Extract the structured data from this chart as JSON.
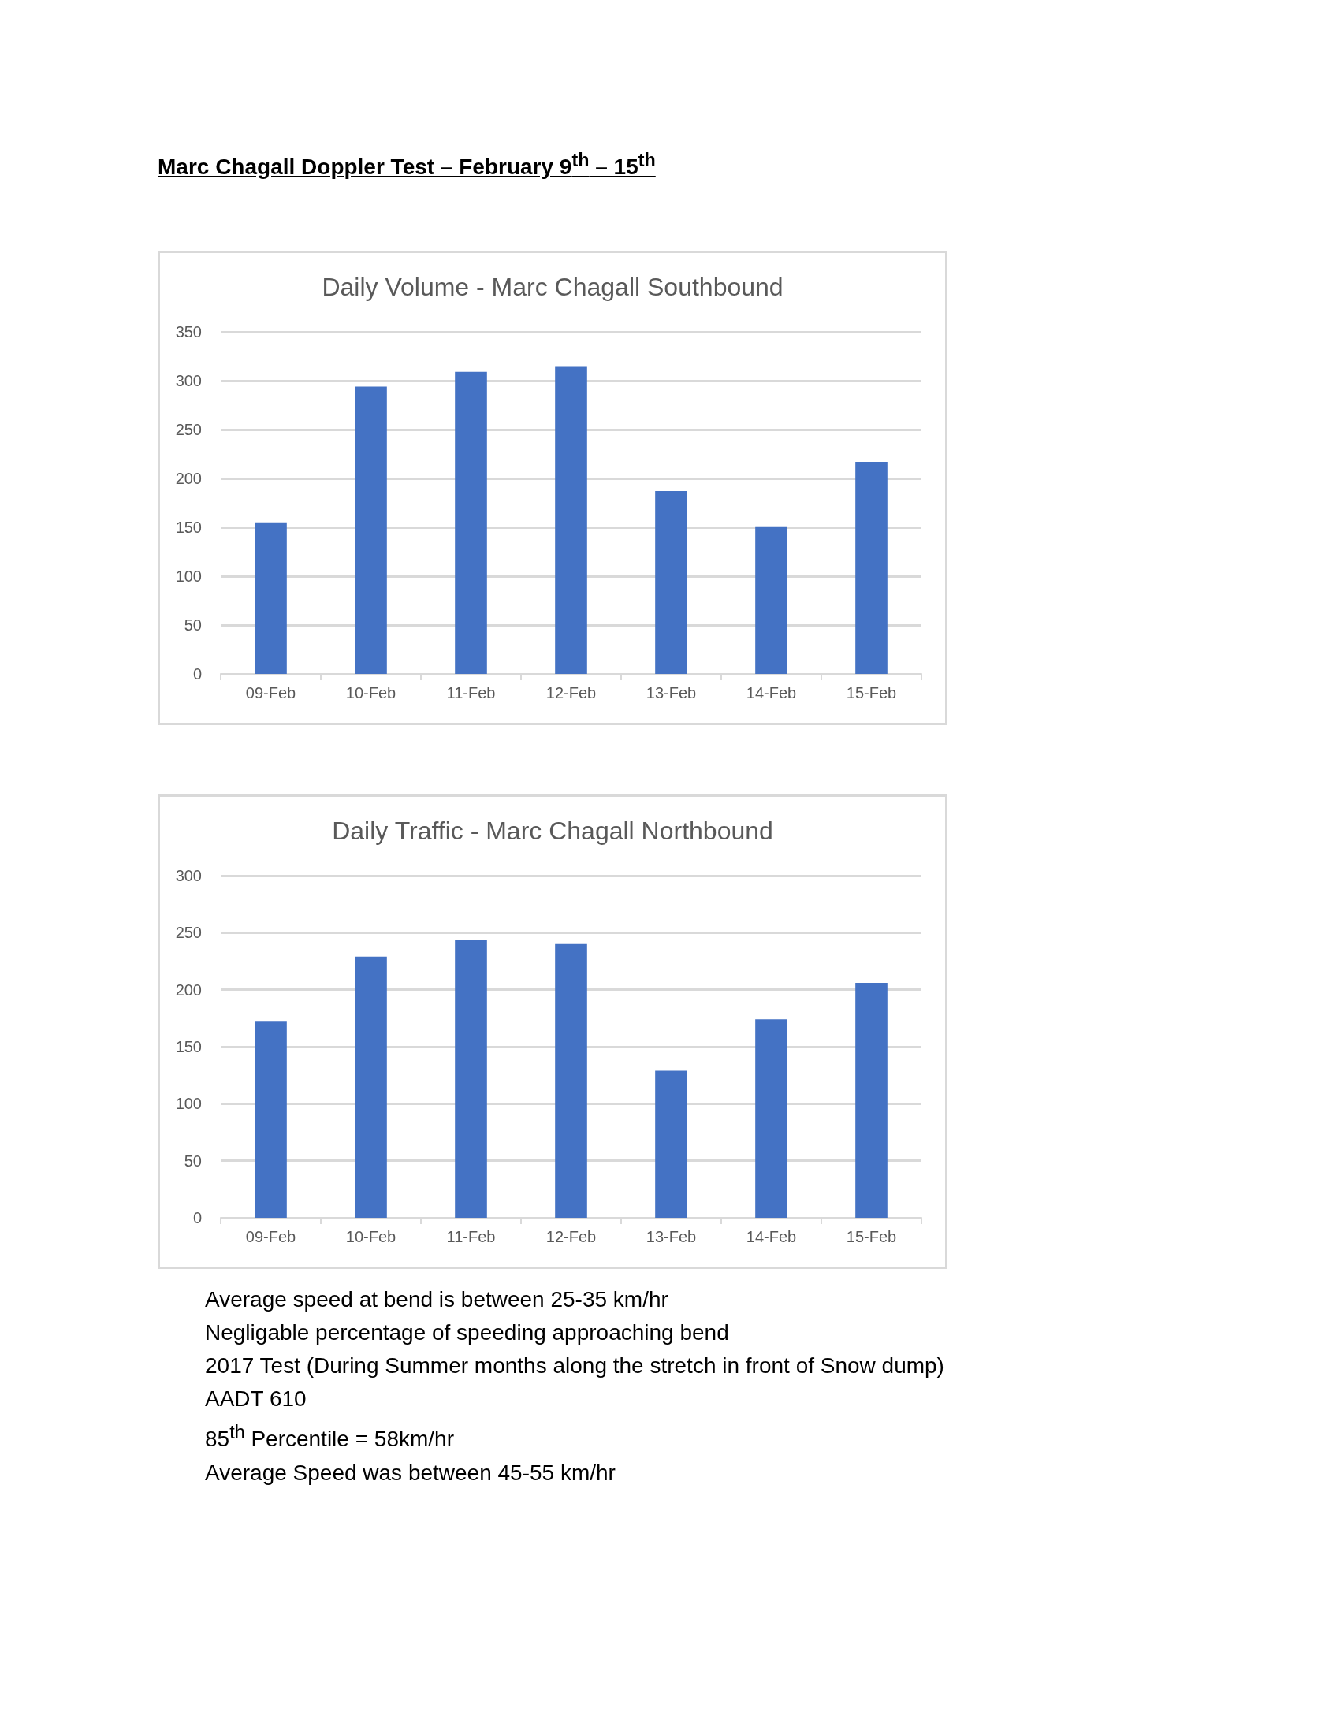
{
  "chart_data": [
    {
      "type": "other",
      "title": "Marc Chagall Doppler Test – February 9$^{th}$ – 15$^{th}$"
    },
    {
      "type": "bar",
      "title": "Daily Volume - Marc Chagall Southbound",
      "categories": [
        "09-Feb",
        "10-Feb",
        "11-Feb",
        "12-Feb",
        "13-Feb",
        "14-Feb",
        "15-Feb"
      ],
      "values": [
        155,
        294,
        309,
        315,
        187,
        151,
        217
      ],
      "color": "#4472c4",
      "ylim": [
        0,
        350
      ],
      "yticks": [
        0,
        50,
        100,
        150,
        200,
        250,
        300,
        350
      ],
      "grid": "y"
    },
    {
      "type": "bar",
      "title": "Daily Traffic - Marc Chagall Northbound",
      "categories": [
        "09-Feb",
        "10-Feb",
        "11-Feb",
        "12-Feb",
        "13-Feb",
        "14-Feb",
        "15-Feb"
      ],
      "values": [
        172,
        229,
        244,
        240,
        129,
        174,
        206
      ],
      "color": "#4472c4",
      "ylim": [
        0,
        300
      ],
      "yticks": [
        0,
        50,
        100,
        150,
        200,
        250,
        300
      ],
      "grid": "y",
      "annotations": [
        "Average speed at bend is between 25-35 km/hr",
        "Negligable percentage of speeding approaching bend",
        "2017 Test (During Summer months along the stretch in front of Snow dump)",
        "AADT 610",
        "85$^{th}$ Percentile = 58km/hr",
        "Average Speed was between 45-55 km/hr"
      ]
    }
  ]
}
